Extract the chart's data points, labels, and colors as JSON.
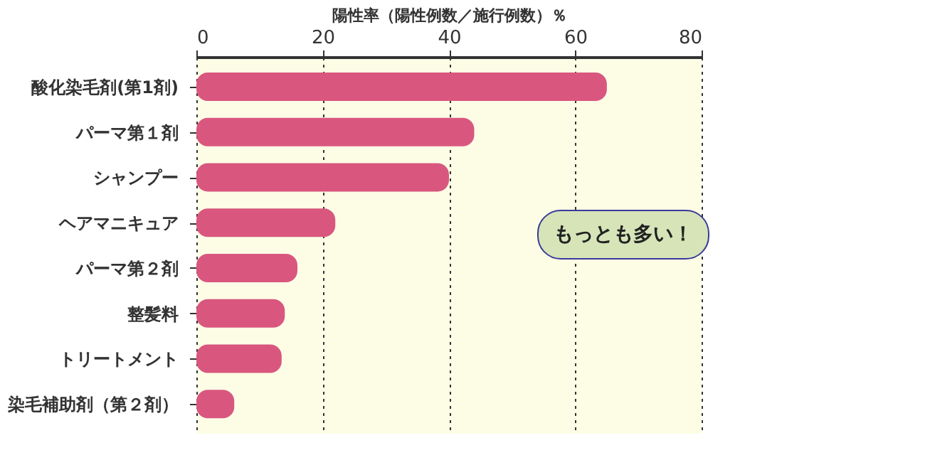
{
  "chart_data": {
    "type": "bar",
    "orientation": "horizontal",
    "xlabel": "陽性率（陽性例数／施行例数）％",
    "categories": [
      "酸化染毛剤(第1剤)",
      "パーマ第１剤",
      "シャンプー",
      "ヘアマニキュア",
      "パーマ第２剤",
      "整髪料",
      "トリートメント",
      "染毛補助剤（第２剤）"
    ],
    "values": [
      65,
      44,
      40,
      22,
      16,
      14,
      13.5,
      6
    ],
    "color": "#d9577f",
    "xlim": [
      0,
      80
    ],
    "xticks": [
      0,
      20,
      40,
      60,
      80
    ],
    "grid": "x",
    "annotations": [
      "もっとも多い！"
    ]
  }
}
